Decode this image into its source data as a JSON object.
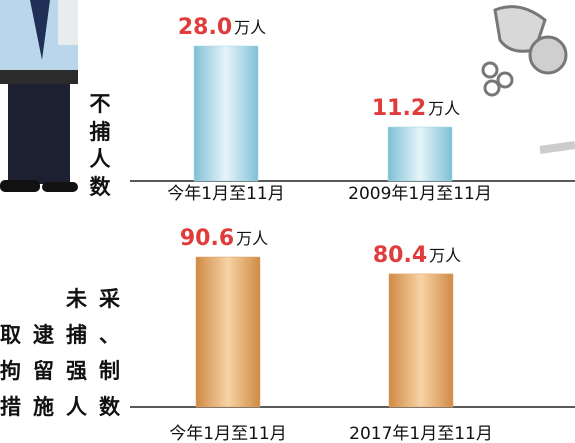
{
  "chart_data": [
    {
      "type": "bar",
      "title_lines": [
        "不",
        "捕",
        "人",
        "数"
      ],
      "categories": [
        "今年1月至11月",
        "2009年1月至11月"
      ],
      "values": [
        28.0,
        11.2
      ],
      "value_labels": [
        "28.0",
        "11.2"
      ],
      "unit": "万人",
      "color": "#9fd3e3"
    },
    {
      "type": "bar",
      "title_lines": [
        "未采",
        "取逮捕、",
        "拘留强制",
        "措施人数"
      ],
      "categories": [
        "今年1月至11月",
        "2017年1月至11月"
      ],
      "values": [
        90.6,
        80.4
      ],
      "value_labels": [
        "90.6",
        "80.4"
      ],
      "unit": "万人",
      "color": "#e0a062"
    }
  ]
}
